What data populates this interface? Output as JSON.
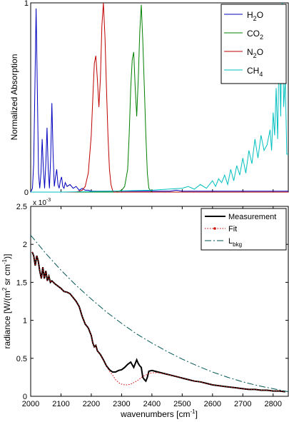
{
  "chart_data": [
    {
      "type": "line",
      "title": "",
      "xlabel": "",
      "ylabel": "Normalized Absorption",
      "xlim": [
        2000,
        2850
      ],
      "ylim": [
        0,
        1
      ],
      "ytick_labels": [
        "0",
        "1"
      ],
      "yticks": [
        0,
        1
      ],
      "legend_position": "top-right",
      "series": [
        {
          "name": "H",
          "name_sub": "2",
          "name_after": "O",
          "color": "#0000bf",
          "x": [
            2000,
            2006,
            2010,
            2014,
            2018,
            2022,
            2026,
            2030,
            2034,
            2038,
            2042,
            2046,
            2050,
            2054,
            2058,
            2062,
            2066,
            2070,
            2074,
            2078,
            2082,
            2086,
            2090,
            2094,
            2098,
            2102,
            2106,
            2110,
            2114,
            2120,
            2130,
            2140,
            2150,
            2160,
            2170,
            2180,
            2190,
            2200,
            2220,
            2240,
            2260,
            2280,
            2300,
            2320,
            2340,
            2360,
            2380,
            2400,
            2420,
            2440,
            2460,
            2480,
            2500,
            2520,
            2540,
            2560,
            2580,
            2600,
            2620,
            2640,
            2660,
            2680,
            2700,
            2720,
            2740,
            2760,
            2780,
            2800,
            2820,
            2840,
            2850
          ],
          "y": [
            0,
            0.02,
            0.15,
            0.55,
            0.97,
            0.55,
            0.1,
            0.02,
            0.1,
            0.28,
            0.12,
            0.02,
            0.15,
            0.34,
            0.12,
            0.02,
            0.18,
            0.47,
            0.2,
            0.03,
            0.08,
            0.12,
            0.04,
            0.02,
            0.06,
            0.08,
            0.03,
            0.02,
            0.05,
            0.03,
            0.04,
            0.02,
            0.03,
            0.01,
            0.02,
            0.01,
            0.01,
            0.005,
            0.005,
            0.005,
            0.005,
            0.005,
            0.005,
            0.005,
            0.005,
            0.005,
            0.005,
            0.005,
            0.005,
            0.005,
            0.005,
            0.01,
            0.005,
            0.005,
            0.005,
            0.005,
            0.005,
            0.005,
            0.005,
            0.005,
            0.005,
            0.005,
            0.005,
            0.005,
            0.005,
            0.005,
            0.005,
            0.005,
            0.005,
            0.005,
            0.005
          ]
        },
        {
          "name": "CO",
          "name_sub": "2",
          "name_after": "",
          "color": "#008000",
          "x": [
            2000,
            2100,
            2200,
            2280,
            2300,
            2310,
            2320,
            2325,
            2330,
            2335,
            2340,
            2345,
            2350,
            2355,
            2360,
            2365,
            2370,
            2375,
            2380,
            2385,
            2390,
            2400,
            2500,
            2600,
            2700,
            2850
          ],
          "y": [
            0,
            0,
            0,
            0,
            0.01,
            0.03,
            0.12,
            0.3,
            0.55,
            0.7,
            0.74,
            0.55,
            0.4,
            0.6,
            0.85,
            0.99,
            0.8,
            0.55,
            0.3,
            0.1,
            0.02,
            0,
            0,
            0,
            0,
            0
          ]
        },
        {
          "name": "N",
          "name_sub": "2",
          "name_after": "O",
          "color": "#bf0000",
          "x": [
            2000,
            2100,
            2150,
            2170,
            2180,
            2190,
            2200,
            2205,
            2210,
            2215,
            2220,
            2225,
            2230,
            2235,
            2240,
            2245,
            2250,
            2255,
            2260,
            2265,
            2270,
            2275,
            2280,
            2300,
            2400,
            2500,
            2600,
            2700,
            2850
          ],
          "y": [
            0,
            0,
            0,
            0.01,
            0.03,
            0.1,
            0.3,
            0.5,
            0.68,
            0.72,
            0.6,
            0.45,
            0.6,
            0.88,
            1.0,
            0.82,
            0.55,
            0.3,
            0.12,
            0.04,
            0.01,
            0,
            0,
            0,
            0,
            0,
            0,
            0,
            0
          ]
        },
        {
          "name": "CH",
          "name_sub": "4",
          "name_after": "",
          "color": "#00bfbf",
          "x": [
            2000,
            2100,
            2200,
            2300,
            2400,
            2450,
            2500,
            2520,
            2540,
            2560,
            2580,
            2600,
            2610,
            2620,
            2630,
            2640,
            2650,
            2660,
            2670,
            2680,
            2690,
            2700,
            2710,
            2720,
            2730,
            2740,
            2750,
            2760,
            2770,
            2780,
            2790,
            2795,
            2800,
            2805,
            2810,
            2815,
            2820,
            2825,
            2830,
            2835,
            2840,
            2845,
            2850
          ],
          "y": [
            0,
            0,
            0.003,
            0.006,
            0.01,
            0.015,
            0.02,
            0.03,
            0.015,
            0.04,
            0.02,
            0.06,
            0.03,
            0.07,
            0.05,
            0.09,
            0.04,
            0.12,
            0.06,
            0.14,
            0.09,
            0.18,
            0.1,
            0.22,
            0.15,
            0.28,
            0.18,
            0.3,
            0.22,
            0.25,
            0.33,
            0.22,
            0.42,
            0.3,
            0.55,
            0.28,
            0.8,
            0.4,
            1.0,
            0.45,
            0.6,
            0.2,
            0.2
          ]
        }
      ]
    },
    {
      "type": "line",
      "title": "",
      "exponent_label": "x 10",
      "exponent_power": "-3",
      "xlabel": "wavenumbers [cm",
      "xlabel_sup": "-1",
      "xlabel_after": "]",
      "ylabel": "radiance [W/(m",
      "ylabel_sup1": "2",
      "ylabel_mid": " sr cm",
      "ylabel_sup2": "-1",
      "ylabel_after": ")]",
      "xlim": [
        2000,
        2850
      ],
      "ylim": [
        0,
        2.5
      ],
      "xticks": [
        2000,
        2100,
        2200,
        2300,
        2400,
        2500,
        2600,
        2700,
        2800
      ],
      "xtick_labels": [
        "2000",
        "2100",
        "2200",
        "2300",
        "2400",
        "2500",
        "2600",
        "2700",
        "2800"
      ],
      "yticks": [
        0,
        0.5,
        1,
        1.5,
        2,
        2.5
      ],
      "ytick_labels": [
        "0",
        "0.5",
        "1",
        "1.5",
        "2",
        "2.5"
      ],
      "legend_position": "top-right",
      "series": [
        {
          "name": "Measurement",
          "color": "#000000",
          "style": "solid-thick",
          "x": [
            2005,
            2010,
            2015,
            2020,
            2025,
            2030,
            2035,
            2040,
            2045,
            2050,
            2055,
            2060,
            2065,
            2070,
            2080,
            2090,
            2100,
            2110,
            2120,
            2130,
            2140,
            2150,
            2160,
            2170,
            2180,
            2190,
            2200,
            2205,
            2210,
            2215,
            2220,
            2230,
            2240,
            2250,
            2260,
            2270,
            2280,
            2290,
            2300,
            2310,
            2320,
            2330,
            2340,
            2350,
            2355,
            2360,
            2365,
            2370,
            2375,
            2380,
            2385,
            2390,
            2400,
            2420,
            2440,
            2460,
            2480,
            2500,
            2520,
            2540,
            2560,
            2580,
            2600,
            2620,
            2640,
            2660,
            2680,
            2700,
            2720,
            2740,
            2760,
            2780,
            2800,
            2820,
            2840
          ],
          "y": [
            1.9,
            1.85,
            1.72,
            1.85,
            1.78,
            1.65,
            1.55,
            1.7,
            1.55,
            1.65,
            1.52,
            1.58,
            1.5,
            1.52,
            1.48,
            1.45,
            1.42,
            1.38,
            1.37,
            1.35,
            1.3,
            1.25,
            1.18,
            1.05,
            0.95,
            0.9,
            0.8,
            0.7,
            0.65,
            0.67,
            0.6,
            0.55,
            0.48,
            0.4,
            0.35,
            0.32,
            0.32,
            0.34,
            0.35,
            0.38,
            0.42,
            0.45,
            0.38,
            0.48,
            0.43,
            0.4,
            0.38,
            0.25,
            0.22,
            0.2,
            0.25,
            0.33,
            0.34,
            0.32,
            0.3,
            0.28,
            0.26,
            0.24,
            0.22,
            0.2,
            0.19,
            0.17,
            0.15,
            0.14,
            0.13,
            0.12,
            0.11,
            0.1,
            0.09,
            0.09,
            0.08,
            0.08,
            0.07,
            0.07,
            0.06
          ]
        },
        {
          "name": "Fit",
          "color": "#cc0000",
          "style": "dotted",
          "x": [
            2005,
            2010,
            2015,
            2020,
            2025,
            2030,
            2035,
            2040,
            2045,
            2050,
            2055,
            2060,
            2065,
            2070,
            2080,
            2090,
            2100,
            2110,
            2120,
            2130,
            2140,
            2150,
            2160,
            2170,
            2180,
            2190,
            2200,
            2205,
            2210,
            2215,
            2220,
            2230,
            2240,
            2250,
            2260,
            2270,
            2280,
            2290,
            2300,
            2310,
            2320,
            2330,
            2340,
            2350,
            2360,
            2370,
            2380,
            2390,
            2400,
            2420,
            2440,
            2460,
            2480,
            2500,
            2520,
            2540,
            2560,
            2580,
            2600,
            2620,
            2640,
            2660,
            2680,
            2700,
            2720,
            2740,
            2760,
            2780,
            2800,
            2820,
            2840
          ],
          "y": [
            1.9,
            1.85,
            1.72,
            1.85,
            1.78,
            1.65,
            1.55,
            1.7,
            1.55,
            1.65,
            1.52,
            1.58,
            1.5,
            1.52,
            1.48,
            1.45,
            1.42,
            1.38,
            1.37,
            1.35,
            1.3,
            1.25,
            1.18,
            1.05,
            0.95,
            0.9,
            0.8,
            0.7,
            0.65,
            0.67,
            0.6,
            0.55,
            0.48,
            0.4,
            0.33,
            0.28,
            0.22,
            0.18,
            0.16,
            0.15,
            0.15,
            0.16,
            0.18,
            0.2,
            0.23,
            0.26,
            0.28,
            0.3,
            0.31,
            0.31,
            0.3,
            0.28,
            0.26,
            0.24,
            0.22,
            0.2,
            0.19,
            0.17,
            0.15,
            0.14,
            0.13,
            0.12,
            0.11,
            0.1,
            0.09,
            0.09,
            0.08,
            0.08,
            0.07,
            0.07,
            0.06
          ]
        },
        {
          "name": "L",
          "name_sub": "bkg",
          "color": "#005555",
          "style": "dash-dot",
          "x": [
            2000,
            2050,
            2100,
            2150,
            2200,
            2250,
            2300,
            2350,
            2400,
            2450,
            2500,
            2550,
            2600,
            2650,
            2700,
            2750,
            2800,
            2850
          ],
          "y": [
            2.12,
            1.88,
            1.66,
            1.46,
            1.28,
            1.11,
            0.96,
            0.82,
            0.7,
            0.59,
            0.49,
            0.4,
            0.32,
            0.25,
            0.19,
            0.14,
            0.1,
            0.06
          ]
        }
      ]
    }
  ]
}
